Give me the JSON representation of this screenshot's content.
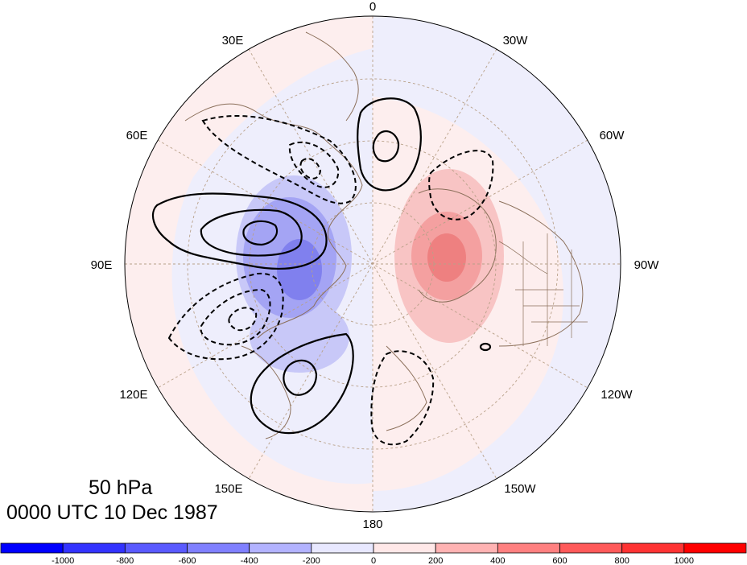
{
  "map": {
    "projection": "north-polar-stereographic",
    "center_lon": 0,
    "coastline_color": "#8b6f5a",
    "graticule_color": "#b8a088",
    "longitude_labels": [
      "0",
      "30W",
      "60W",
      "90W",
      "120W",
      "150W",
      "180",
      "150E",
      "120E",
      "90E",
      "60E",
      "30E"
    ]
  },
  "titles": {
    "level": "50 hPa",
    "time": "0000 UTC 10 Dec 1987"
  },
  "colorbar": {
    "colors": [
      "#0000ff",
      "#3333ff",
      "#5a5aff",
      "#8080ff",
      "#b3b3ff",
      "#e8e8ff",
      "#ffe8e8",
      "#ffb3b3",
      "#ff8080",
      "#ff5a5a",
      "#ff3333",
      "#ff0000"
    ],
    "tick_labels": [
      "-1000",
      "-800",
      "-600",
      "-400",
      "-200",
      "0",
      "200",
      "400",
      "600",
      "800",
      "1000"
    ]
  },
  "contour_style": {
    "positive": "solid black",
    "negative": "dashed black"
  }
}
